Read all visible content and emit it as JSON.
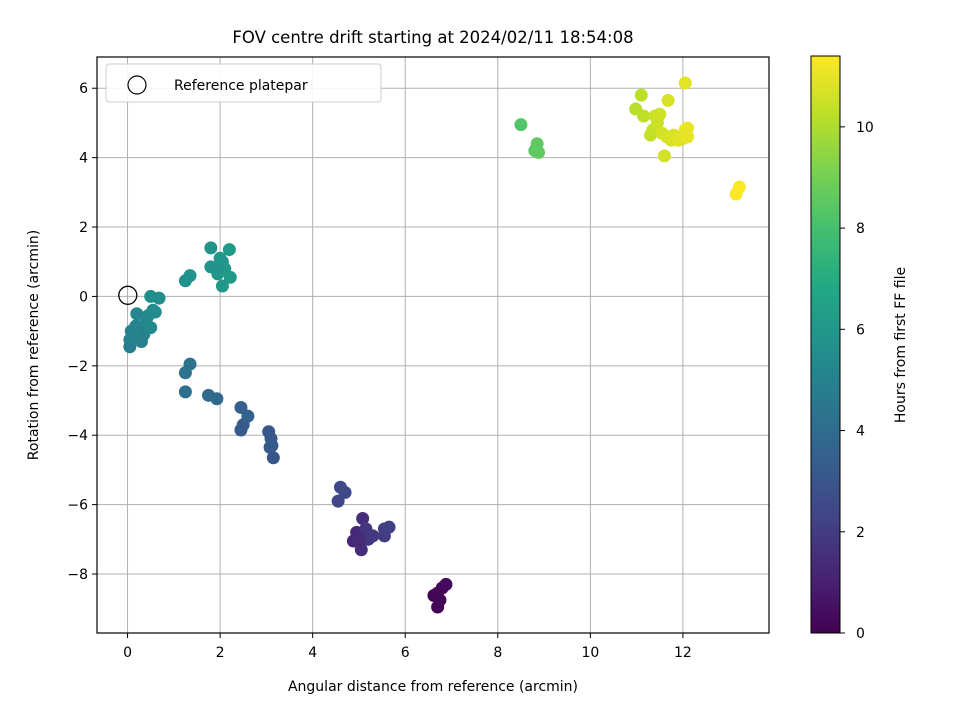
{
  "chart_data": {
    "type": "scatter",
    "title": "FOV centre drift starting at 2024/02/11 18:54:08",
    "xlabel": "Angular distance from reference (arcmin)",
    "ylabel": "Rotation from reference (arcmin)",
    "xlim": [
      -0.66,
      13.86
    ],
    "ylim": [
      -9.7,
      6.9
    ],
    "xticks": [
      0,
      2,
      4,
      6,
      8,
      10,
      12
    ],
    "yticks": [
      -8,
      -6,
      -4,
      -2,
      0,
      2,
      4,
      6
    ],
    "grid": true,
    "legend": {
      "placement": "top-left",
      "entries": [
        {
          "label": "Reference platepar",
          "marker": "open-circle",
          "x": 0,
          "y": 0
        }
      ]
    },
    "colorbar": {
      "label": "Hours from first FF file",
      "colormap": "viridis",
      "range": [
        0,
        11.4
      ],
      "ticks": [
        0,
        2,
        4,
        6,
        8,
        10
      ]
    },
    "points": [
      {
        "x": 6.62,
        "y": -8.62,
        "t": 0.0
      },
      {
        "x": 6.7,
        "y": -8.95,
        "t": 0.05
      },
      {
        "x": 6.75,
        "y": -8.75,
        "t": 0.1
      },
      {
        "x": 6.8,
        "y": -8.4,
        "t": 0.2
      },
      {
        "x": 6.88,
        "y": -8.3,
        "t": 0.3
      },
      {
        "x": 6.7,
        "y": -8.55,
        "t": 0.15
      },
      {
        "x": 4.88,
        "y": -7.05,
        "t": 1.2
      },
      {
        "x": 4.95,
        "y": -6.8,
        "t": 1.3
      },
      {
        "x": 5.05,
        "y": -7.3,
        "t": 1.4
      },
      {
        "x": 5.08,
        "y": -6.4,
        "t": 1.5
      },
      {
        "x": 5.1,
        "y": -6.9,
        "t": 1.6
      },
      {
        "x": 5.15,
        "y": -6.7,
        "t": 1.7
      },
      {
        "x": 5.2,
        "y": -7.0,
        "t": 1.8
      },
      {
        "x": 5.3,
        "y": -6.9,
        "t": 1.9
      },
      {
        "x": 5.55,
        "y": -6.9,
        "t": 2.0
      },
      {
        "x": 5.55,
        "y": -6.7,
        "t": 2.1
      },
      {
        "x": 5.65,
        "y": -6.65,
        "t": 2.15
      },
      {
        "x": 5.0,
        "y": -7.0,
        "t": 1.35
      },
      {
        "x": 4.55,
        "y": -5.9,
        "t": 2.4
      },
      {
        "x": 4.6,
        "y": -5.5,
        "t": 2.5
      },
      {
        "x": 4.7,
        "y": -5.65,
        "t": 2.55
      },
      {
        "x": 2.45,
        "y": -3.85,
        "t": 3.2
      },
      {
        "x": 2.5,
        "y": -3.7,
        "t": 3.3
      },
      {
        "x": 2.45,
        "y": -3.2,
        "t": 3.4
      },
      {
        "x": 2.6,
        "y": -3.45,
        "t": 3.5
      },
      {
        "x": 3.05,
        "y": -3.9,
        "t": 3.0
      },
      {
        "x": 3.08,
        "y": -4.35,
        "t": 3.1
      },
      {
        "x": 3.1,
        "y": -4.1,
        "t": 3.15
      },
      {
        "x": 3.12,
        "y": -4.3,
        "t": 3.2
      },
      {
        "x": 3.15,
        "y": -4.65,
        "t": 3.05
      },
      {
        "x": 1.25,
        "y": -2.2,
        "t": 4.3
      },
      {
        "x": 1.35,
        "y": -1.95,
        "t": 4.35
      },
      {
        "x": 1.25,
        "y": -2.75,
        "t": 4.1
      },
      {
        "x": 1.75,
        "y": -2.85,
        "t": 3.9
      },
      {
        "x": 1.93,
        "y": -2.95,
        "t": 3.85
      },
      {
        "x": 0.05,
        "y": -1.45,
        "t": 4.8
      },
      {
        "x": 0.05,
        "y": -1.25,
        "t": 4.9
      },
      {
        "x": 0.08,
        "y": -1.0,
        "t": 5.0
      },
      {
        "x": 0.12,
        "y": -1.15,
        "t": 5.05
      },
      {
        "x": 0.18,
        "y": -0.85,
        "t": 5.1
      },
      {
        "x": 0.2,
        "y": -0.5,
        "t": 5.2
      },
      {
        "x": 0.25,
        "y": -0.9,
        "t": 5.15
      },
      {
        "x": 0.3,
        "y": -1.3,
        "t": 4.95
      },
      {
        "x": 0.35,
        "y": -1.1,
        "t": 5.0
      },
      {
        "x": 0.4,
        "y": -0.7,
        "t": 5.25
      },
      {
        "x": 0.45,
        "y": -0.55,
        "t": 5.3
      },
      {
        "x": 0.5,
        "y": -0.9,
        "t": 5.35
      },
      {
        "x": 0.55,
        "y": -0.4,
        "t": 5.4
      },
      {
        "x": 0.5,
        "y": 0.0,
        "t": 5.5
      },
      {
        "x": 0.6,
        "y": -0.45,
        "t": 5.45
      },
      {
        "x": 0.68,
        "y": -0.05,
        "t": 5.55
      },
      {
        "x": 0.25,
        "y": -1.05,
        "t": 4.9
      },
      {
        "x": 0.15,
        "y": -0.95,
        "t": 5.05
      },
      {
        "x": 1.25,
        "y": 0.45,
        "t": 5.7
      },
      {
        "x": 1.35,
        "y": 0.6,
        "t": 5.75
      },
      {
        "x": 1.8,
        "y": 1.4,
        "t": 5.8
      },
      {
        "x": 1.8,
        "y": 0.85,
        "t": 5.85
      },
      {
        "x": 1.95,
        "y": 0.65,
        "t": 5.9
      },
      {
        "x": 2.0,
        "y": 1.1,
        "t": 5.95
      },
      {
        "x": 2.05,
        "y": 0.3,
        "t": 6.0
      },
      {
        "x": 2.05,
        "y": 1.0,
        "t": 5.95
      },
      {
        "x": 2.1,
        "y": 0.8,
        "t": 6.05
      },
      {
        "x": 2.2,
        "y": 1.35,
        "t": 6.1
      },
      {
        "x": 2.22,
        "y": 0.55,
        "t": 6.15
      },
      {
        "x": 1.95,
        "y": 0.85,
        "t": 5.9
      },
      {
        "x": 8.5,
        "y": 4.95,
        "t": 8.3
      },
      {
        "x": 8.8,
        "y": 4.2,
        "t": 8.5
      },
      {
        "x": 8.85,
        "y": 4.4,
        "t": 8.55
      },
      {
        "x": 8.88,
        "y": 4.15,
        "t": 8.6
      },
      {
        "x": 10.98,
        "y": 5.4,
        "t": 10.2
      },
      {
        "x": 11.1,
        "y": 5.8,
        "t": 10.25
      },
      {
        "x": 11.15,
        "y": 5.2,
        "t": 10.3
      },
      {
        "x": 11.3,
        "y": 4.65,
        "t": 10.35
      },
      {
        "x": 11.35,
        "y": 4.8,
        "t": 10.4
      },
      {
        "x": 11.4,
        "y": 5.2,
        "t": 10.45
      },
      {
        "x": 11.45,
        "y": 5.0,
        "t": 10.5
      },
      {
        "x": 11.5,
        "y": 5.25,
        "t": 10.55
      },
      {
        "x": 11.55,
        "y": 4.7,
        "t": 10.6
      },
      {
        "x": 11.6,
        "y": 4.05,
        "t": 10.65
      },
      {
        "x": 11.65,
        "y": 4.6,
        "t": 10.7
      },
      {
        "x": 11.68,
        "y": 5.65,
        "t": 10.72
      },
      {
        "x": 11.75,
        "y": 4.5,
        "t": 10.75
      },
      {
        "x": 11.8,
        "y": 4.65,
        "t": 10.8
      },
      {
        "x": 11.9,
        "y": 4.5,
        "t": 10.85
      },
      {
        "x": 12.0,
        "y": 4.55,
        "t": 10.9
      },
      {
        "x": 12.05,
        "y": 6.15,
        "t": 10.95
      },
      {
        "x": 12.05,
        "y": 4.8,
        "t": 11.0
      },
      {
        "x": 12.1,
        "y": 4.6,
        "t": 11.02
      },
      {
        "x": 12.1,
        "y": 4.85,
        "t": 11.05
      },
      {
        "x": 13.15,
        "y": 2.95,
        "t": 11.35
      },
      {
        "x": 13.22,
        "y": 3.15,
        "t": 11.4
      }
    ]
  }
}
